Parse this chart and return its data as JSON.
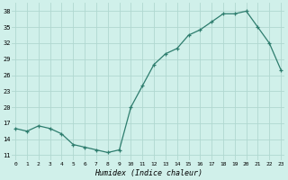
{
  "x": [
    0,
    1,
    2,
    3,
    4,
    5,
    6,
    7,
    8,
    9,
    10,
    11,
    12,
    13,
    14,
    15,
    16,
    17,
    18,
    19,
    20,
    21,
    22,
    23
  ],
  "humidex": [
    16,
    15.5,
    16.5,
    16,
    15,
    13,
    12.5,
    12,
    11.5,
    12,
    20,
    24,
    28,
    30,
    31,
    33.5,
    34.5,
    36,
    37.5,
    37.5,
    38,
    35,
    32,
    27
  ],
  "line_color": "#2e7d6e",
  "bg_color": "#d0f0ea",
  "grid_color": "#b0d8d0",
  "xlabel": "Humidex (Indice chaleur)",
  "yticks": [
    11,
    14,
    17,
    20,
    23,
    26,
    29,
    32,
    35,
    38
  ],
  "xticks": [
    0,
    1,
    2,
    3,
    4,
    5,
    6,
    7,
    8,
    9,
    10,
    11,
    12,
    13,
    14,
    15,
    16,
    17,
    18,
    19,
    20,
    21,
    22,
    23
  ],
  "ylim": [
    10,
    39.5
  ],
  "xlim": [
    -0.3,
    23.3
  ]
}
